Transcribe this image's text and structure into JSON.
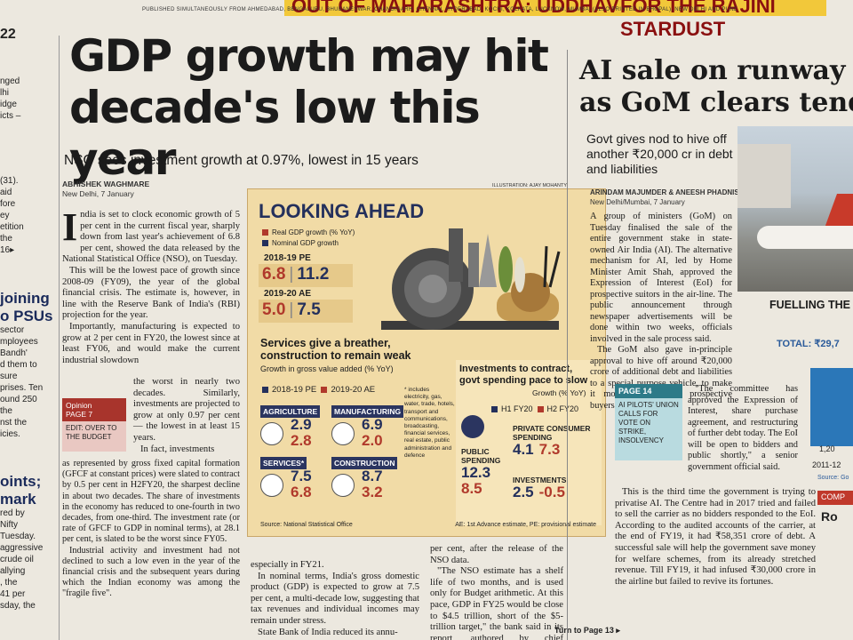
{
  "masthead": {
    "banner_left": "OUT OF MAHARASHTRA: UDDHAV",
    "banner_right": "FOR THE RAJINI STARDUST",
    "publication_line": "PUBLISHED SIMULTANEOUSLY FROM AHMEDABAD, BENGALURU, BHUBANESWAR, CHANDIGARH, CHENNAI, HYDERABAD, KOCHI, KOLKATA, LUCKNOW, MUMBAI (ALSO PRINTED IN BHOPAL), NEW DELHI AND PUNE"
  },
  "left_column": {
    "lines": [
      "22",
      "nged",
      "lhi",
      "idge",
      "icts –",
      "(31).",
      "aid",
      "fore",
      "ey",
      "etition",
      "the",
      "16▸",
      "joining",
      "o PSUs",
      "sector",
      "mployees",
      "Bandh'",
      "d them to",
      "sure",
      "prises. Ten",
      "ound 250",
      "the",
      "nst the",
      "icies.",
      "oints;",
      "mark",
      "red by",
      "Nifty",
      "Tuesday.",
      "aggressive",
      "crude oil",
      "allying",
      ", the",
      "41 per",
      "sday, the"
    ]
  },
  "main": {
    "headline": "GDP growth may hit decade's low this year",
    "subhead": "NSO sees investment growth at 0.97%, lowest in 15 years",
    "byline": "ABHISHEK WAGHMARE",
    "dateline": "New Delhi, 7 January",
    "dropcap": "I",
    "para1": "ndia is set to clock economic growth of 5 per cent in the current fiscal year, sharply down from last year's achievement of 6.8 per cent, showed the data released by the National Statistical Office (NSO), on Tuesday.",
    "para2": "This will be the lowest pace of growth since 2008-09 (FY09), the year of the global financial crisis. The estimate is, however, in line with the Reserve Bank of India's (RBI) projection for the year.",
    "para3a": "Importantly, manufacturing is expected to grow at 2 per cent in FY20, the lowest since at least FY06, and would make the current industrial slowdown",
    "para3b": "the worst in nearly two decades. Similarly, investments are projected to grow at only 0.97 per cent — the lowest in at least 15 years.",
    "para4": "In fact, investments",
    "para5": "as represented by gross fixed capital formation (GFCF at constant prices) were slated to contract by 0.5 per cent in H2FY20, the sharpest decline in about two decades. The share of investments in the economy has reduced to one-fourth in two decades, from one-third. The investment rate (or rate of GFCF to GDP in nominal terms), at 28.1 per cent, is slated to be the worst since FY05.",
    "para6": "Industrial activity and investment had not declined to such a low even in the year of the financial crisis and the subsequent years during which the Indian economy was among the \"fragile five\".",
    "col2a": "especially in FY21.",
    "col2b": "In nominal terms, India's gross domestic product (GDP) is expected to grow at 7.5 per cent, a multi-decade low, suggesting that tax revenues and individual incomes may remain under stress.",
    "col2c": "State Bank of India reduced its annu-",
    "col3a": "per cent, after the release of the NSO data.",
    "col3b": "\"The NSO estimate has a shelf life of two months, and is used only for Budget arithmetic. At this pace, GDP in FY25 would be close to $4.5 trillion, short of the $5-trillion target,\" the bank said in its report, authored by chief economist Soumya Kanti Ghosh.",
    "turn_to": "Turn to Page 13 ▸",
    "opinion": {
      "head": "Opinion",
      "page": "PAGE 7",
      "body": "EDIT: OVER TO THE BUDGET"
    }
  },
  "infographic": {
    "credit": "ILLUSTRATION: AJAY MOHANTY",
    "title": "LOOKING AHEAD",
    "legend_real": "Real GDP growth",
    "legend_nominal": "Nominal GDP growth",
    "legend_unit": "(% YoY)",
    "pe_label": "2018-19 PE",
    "pe_real": "6.8",
    "pe_nominal": "11.2",
    "ae_label": "2019-20 AE",
    "ae_real": "5.0",
    "ae_nominal": "7.5",
    "services_title": "Services give a breather, construction to remain weak",
    "services_sub": "Growth in gross value added (% YoY)",
    "leg_pe": "2018-19 PE",
    "leg_ae": "2019-20 AE",
    "sectors": [
      {
        "name": "AGRICULTURE",
        "pe": "2.9",
        "ae": "2.8"
      },
      {
        "name": "MANUFACTURING",
        "pe": "6.9",
        "ae": "2.0"
      },
      {
        "name": "SERVICES*",
        "pe": "7.5",
        "ae": "6.8"
      },
      {
        "name": "CONSTRUCTION",
        "pe": "8.7",
        "ae": "3.2"
      }
    ],
    "footnote": "* includes electricity, gas, water, trade, hotels, transport and communications, broadcasting, financial services, real estate, public administration and defence",
    "invest_title": "Investments to contract, govt spending pace to slow",
    "invest_growth": "Growth (% YoY)",
    "leg_h1": "H1 FY20",
    "leg_h2": "H2 FY20",
    "private_label": "PRIVATE CONSUMER SPENDING",
    "private_h1": "4.1",
    "private_h2": "7.3",
    "public_label": "PUBLIC SPENDING",
    "public_h1": "12.3",
    "public_h2": "8.5",
    "investments_label": "INVESTMENTS",
    "investments_h1": "2.5",
    "investments_h2": "-0.5",
    "source": "Source: National Statistical Office",
    "ae_note": "AE: 1st Advance estimate, PE: provisional estimate"
  },
  "right": {
    "headline": "AI sale on runway as GoM clears tender",
    "sub": "Govt gives nod to hive off another ₹20,000 cr in debt and liabilities",
    "byline": "ARINDAM MAJUMDER & ANEESH PHADNIS",
    "dateline": "New Delhi/Mumbai, 7 January",
    "para1": "A group of ministers (GoM) on Tuesday finalised the sale of the entire government stake in state-owned Air India (AI). The alternative mechanism for AI, led by Home Minister Amit Shah, approved the Expression of Interest (EoI) for prospective suitors in the air-line. The public announcement through newspaper advertisements will be done within two weeks, officials involved in the sale process said.",
    "para2": "The GoM also gave in-principle approval to hive off around ₹20,000 crore of additional debt and liabilities to a special purpose vehicle, to make it more attractive to prospective buyers.",
    "para3": "\"The committee has approved the Expression of Interest, share purchase agreement, and restructuring of further debt today. The EoI will be open to bidders and public shortly,\" a senior government official said.",
    "para4": "This is the third time the government is trying to privatise AI. The Centre had in 2017 tried and failed to sell the carrier as no bidders responded to the EoI. According to the audited accounts of the carrier, at the end of FY19, it had ₹58,351 crore of debt. A successful sale will help the government save money for welfare schemes, from its already stretched revenue. Till FY19, it had infused ₹30,000 crore in the airline but failed to revive its fortunes.",
    "page14_head": "PAGE 14",
    "page14_body": "AI PILOTS' UNION CALLS FOR VOTE ON STRIKE, INSOLVENCY",
    "fuelling": "FUELLING THE",
    "total": "TOTAL: ₹29,7",
    "bar_label": "1,20",
    "axis_label": "2011-12",
    "source": "Source: Go",
    "comp_tag": "COMP",
    "comp_text": "Ro"
  },
  "colors": {
    "real": "#b0392b",
    "nominal": "#24305c",
    "banner": "#f2c83a",
    "infographic_bg": "#f1dba6",
    "opinion_red": "#a8342c",
    "page14_teal": "#2d7a88"
  }
}
